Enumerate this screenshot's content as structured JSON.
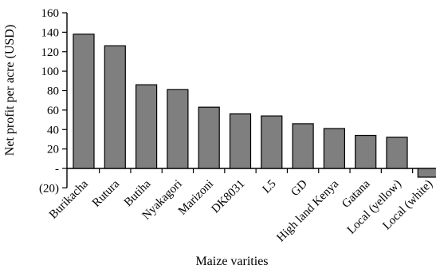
{
  "chart_data": {
    "type": "bar",
    "xlabel": "Maize varities",
    "ylabel": "Net profit per acre (USD)",
    "ylim": [
      -20,
      160
    ],
    "yticks": [
      -20,
      0,
      20,
      40,
      60,
      80,
      100,
      120,
      140,
      160
    ],
    "ytick_labels": [
      "(20)",
      "-",
      "20",
      "40",
      "60",
      "80",
      "100",
      "120",
      "140",
      "160"
    ],
    "categories": [
      "Burikacha",
      "Rutura",
      "Butiha",
      "Nyakagori",
      "Marizoni",
      "DK8031",
      "L5",
      "GD",
      "High land Kenya",
      "Gatana",
      "Local (yellow)",
      "Local (white)"
    ],
    "values": [
      138,
      126,
      86,
      81,
      63,
      56,
      54,
      46,
      41,
      34,
      32,
      -9
    ],
    "grid": false,
    "legend": "none",
    "colors": {
      "bar": "#7f7f7f",
      "axis": "#000000"
    }
  }
}
